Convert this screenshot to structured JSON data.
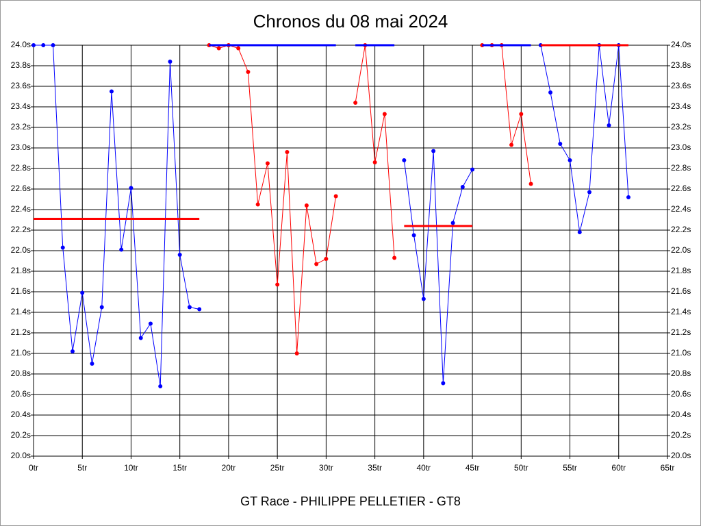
{
  "chart_data": {
    "type": "line",
    "title": "Chronos du 08 mai 2024",
    "xlabel": "GT Race - PHILIPPE PELLETIER - GT8",
    "xlim": [
      0,
      65
    ],
    "ylim": [
      20.0,
      24.0
    ],
    "grid": true,
    "xticks": [
      {
        "value": 0,
        "label": "0tr"
      },
      {
        "value": 5,
        "label": "5tr"
      },
      {
        "value": 10,
        "label": "10tr"
      },
      {
        "value": 15,
        "label": "15tr"
      },
      {
        "value": 20,
        "label": "20tr"
      },
      {
        "value": 25,
        "label": "25tr"
      },
      {
        "value": 30,
        "label": "30tr"
      },
      {
        "value": 35,
        "label": "35tr"
      },
      {
        "value": 40,
        "label": "40tr"
      },
      {
        "value": 45,
        "label": "45tr"
      },
      {
        "value": 50,
        "label": "50tr"
      },
      {
        "value": 55,
        "label": "55tr"
      },
      {
        "value": 60,
        "label": "60tr"
      },
      {
        "value": 65,
        "label": "65tr"
      }
    ],
    "yticks": [
      {
        "value": 20.0,
        "label": "20.0s"
      },
      {
        "value": 20.2,
        "label": "20.2s"
      },
      {
        "value": 20.4,
        "label": "20.4s"
      },
      {
        "value": 20.6,
        "label": "20.6s"
      },
      {
        "value": 20.8,
        "label": "20.8s"
      },
      {
        "value": 21.0,
        "label": "21.0s"
      },
      {
        "value": 21.2,
        "label": "21.2s"
      },
      {
        "value": 21.4,
        "label": "21.4s"
      },
      {
        "value": 21.6,
        "label": "21.6s"
      },
      {
        "value": 21.8,
        "label": "21.8s"
      },
      {
        "value": 22.0,
        "label": "22.0s"
      },
      {
        "value": 22.2,
        "label": "22.2s"
      },
      {
        "value": 22.4,
        "label": "22.4s"
      },
      {
        "value": 22.6,
        "label": "22.6s"
      },
      {
        "value": 22.8,
        "label": "22.8s"
      },
      {
        "value": 23.0,
        "label": "23.0s"
      },
      {
        "value": 23.2,
        "label": "23.2s"
      },
      {
        "value": 23.4,
        "label": "23.4s"
      },
      {
        "value": 23.6,
        "label": "23.6s"
      },
      {
        "value": 23.8,
        "label": "23.8s"
      },
      {
        "value": 24.0,
        "label": "24.0s"
      }
    ],
    "series": [
      {
        "color": "#0000ff",
        "markers": true,
        "x": [
          0,
          1,
          2,
          3,
          4,
          5,
          6,
          7,
          8,
          9,
          10,
          11,
          12,
          13,
          14,
          15,
          16,
          17
        ],
        "values": [
          24.0,
          24.0,
          24.0,
          22.03,
          21.02,
          21.59,
          20.9,
          21.45,
          23.55,
          22.01,
          22.61,
          21.15,
          21.29,
          20.68,
          23.84,
          21.96,
          21.45,
          21.43
        ]
      },
      {
        "color": "#ff0000",
        "markers": false,
        "x": [
          0,
          17
        ],
        "values": [
          22.31,
          22.31
        ]
      },
      {
        "color": "#ff0000",
        "markers": true,
        "x": [
          18,
          19,
          20,
          21,
          22,
          23,
          24,
          25,
          26,
          27,
          28,
          29,
          30,
          31
        ],
        "values": [
          24.0,
          23.97,
          24.0,
          23.97,
          23.74,
          22.45,
          22.85,
          21.67,
          22.96,
          21.0,
          22.44,
          21.87,
          21.92,
          22.53
        ]
      },
      {
        "color": "#0000ff",
        "markers": false,
        "x": [
          18,
          31
        ],
        "values": [
          24.0,
          24.0
        ]
      },
      {
        "color": "#ff0000",
        "markers": true,
        "x": [
          33,
          34,
          35,
          36,
          37
        ],
        "values": [
          23.44,
          24.0,
          22.86,
          23.33,
          21.93
        ]
      },
      {
        "color": "#0000ff",
        "markers": false,
        "x": [
          33,
          37
        ],
        "values": [
          24.0,
          24.0
        ]
      },
      {
        "color": "#0000ff",
        "markers": true,
        "x": [
          38,
          39,
          40,
          41,
          42,
          43,
          44,
          45
        ],
        "values": [
          22.88,
          22.15,
          21.53,
          22.97,
          20.71,
          22.27,
          22.62,
          22.79
        ]
      },
      {
        "color": "#ff0000",
        "markers": false,
        "x": [
          38,
          45
        ],
        "values": [
          22.24,
          22.24
        ]
      },
      {
        "color": "#ff0000",
        "markers": true,
        "x": [
          46,
          47,
          48,
          49,
          50,
          51
        ],
        "values": [
          24.0,
          24.0,
          24.0,
          23.03,
          23.33,
          22.65
        ]
      },
      {
        "color": "#0000ff",
        "markers": false,
        "x": [
          46,
          51
        ],
        "values": [
          24.0,
          24.0
        ]
      },
      {
        "color": "#0000ff",
        "markers": true,
        "x": [
          52,
          53,
          54,
          55,
          56,
          57,
          58,
          59,
          60,
          61
        ],
        "values": [
          24.0,
          23.54,
          23.04,
          22.88,
          22.18,
          22.57,
          24.0,
          23.22,
          24.0,
          22.52
        ]
      },
      {
        "color": "#ff0000",
        "markers": false,
        "x": [
          52,
          61
        ],
        "values": [
          24.0,
          24.0
        ]
      }
    ]
  }
}
